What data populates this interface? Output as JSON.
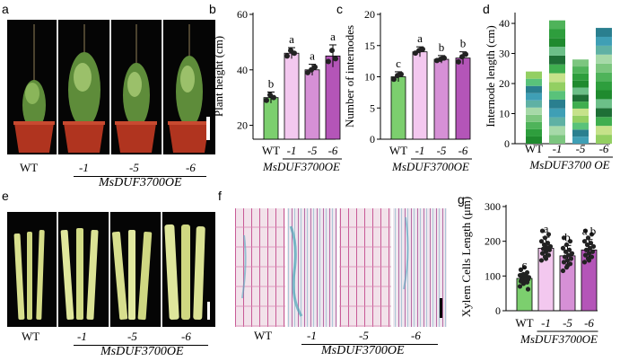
{
  "panel_letters": [
    "a",
    "b",
    "c",
    "d",
    "e",
    "f",
    "g"
  ],
  "genotype_label": "MsDUF3700OE",
  "genotype_label_d": "MsDUF3700 OE",
  "photo_labels": [
    "WT",
    "-1",
    "-5",
    "-6"
  ],
  "chart_data": [
    {
      "type": "bar",
      "panel": "b",
      "ylabel": "Plant height (cm)",
      "categories": [
        "WT",
        "-1",
        "-5",
        "-6"
      ],
      "values": [
        30,
        46,
        40,
        45
      ],
      "errors": [
        2,
        2,
        2,
        4
      ],
      "points": [
        [
          29,
          31,
          30
        ],
        [
          45,
          47,
          46
        ],
        [
          39,
          40,
          41
        ],
        [
          43,
          47,
          44
        ]
      ],
      "letters": [
        "b",
        "a",
        "a",
        "a"
      ],
      "yticks": [
        20,
        40,
        60
      ],
      "ylim": [
        15,
        60
      ],
      "colors": [
        "#7ccf6e",
        "#f3c8ef",
        "#d690d6",
        "#b455b8"
      ],
      "group_label": "MsDUF3700OE"
    },
    {
      "type": "bar",
      "panel": "c",
      "ylabel": "Number of internodes",
      "categories": [
        "WT",
        "-1",
        "-5",
        "-6"
      ],
      "values": [
        10,
        14,
        12.8,
        13
      ],
      "errors": [
        0.8,
        0.8,
        0.6,
        1.0
      ],
      "points": [
        [
          9.6,
          10.2,
          10.4
        ],
        [
          13.8,
          14.2,
          14.4
        ],
        [
          12.6,
          12.8,
          13.0
        ],
        [
          12.4,
          13.2,
          13.6
        ]
      ],
      "letters": [
        "c",
        "a",
        "b",
        "b"
      ],
      "yticks": [
        0,
        5,
        10,
        15,
        20
      ],
      "ylim": [
        0,
        20
      ],
      "colors": [
        "#7ccf6e",
        "#f3c8ef",
        "#d690d6",
        "#b455b8"
      ],
      "group_label": "MsDUF3700OE"
    },
    {
      "type": "stacked bar",
      "panel": "d",
      "ylabel": "Internode length (cm)",
      "categories": [
        "WT",
        "-1",
        "-5",
        "-6"
      ],
      "totals": [
        24,
        41,
        28,
        38.5
      ],
      "segment_counts": [
        10,
        14,
        12,
        13
      ],
      "yticks": [
        0,
        10,
        20,
        30,
        40
      ],
      "ylim": [
        0,
        43
      ],
      "segment_colors": [
        "#1f8a2e",
        "#2e9e3d",
        "#4fb35a",
        "#7cc67f",
        "#a6d9a8",
        "#5fb1a4",
        "#3f9fb5",
        "#2a7f8f",
        "#59c27a",
        "#93cf62",
        "#c6e28a",
        "#3fae4f",
        "#1e6f36",
        "#6cbf88"
      ],
      "group_label": "MsDUF3700 OE"
    },
    {
      "type": "bar",
      "panel": "g",
      "ylabel": "Xylem Cells Length (μm)",
      "categories": [
        "WT",
        "-1",
        "-5",
        "-6"
      ],
      "values": [
        93,
        180,
        158,
        175
      ],
      "errors": [
        15,
        32,
        30,
        30
      ],
      "points": [
        [
          70,
          78,
          82,
          85,
          88,
          90,
          92,
          94,
          96,
          98,
          100,
          102,
          105,
          110,
          118,
          125,
          62
        ],
        [
          145,
          155,
          160,
          165,
          170,
          175,
          178,
          182,
          185,
          190,
          195,
          200,
          210,
          220,
          230,
          150
        ],
        [
          115,
          125,
          135,
          140,
          145,
          150,
          155,
          160,
          165,
          170,
          175,
          180,
          190,
          200,
          210,
          130
        ],
        [
          140,
          150,
          155,
          160,
          165,
          170,
          175,
          180,
          185,
          190,
          195,
          200,
          210,
          220,
          230,
          145
        ]
      ],
      "letters": [
        "c",
        "a",
        "b",
        "a b"
      ],
      "yticks": [
        0,
        100,
        200,
        300
      ],
      "ylim": [
        0,
        300
      ],
      "colors": [
        "#7ccf6e",
        "#f3c8ef",
        "#d690d6",
        "#b455b8"
      ],
      "group_label": "MsDUF3700OE"
    }
  ]
}
